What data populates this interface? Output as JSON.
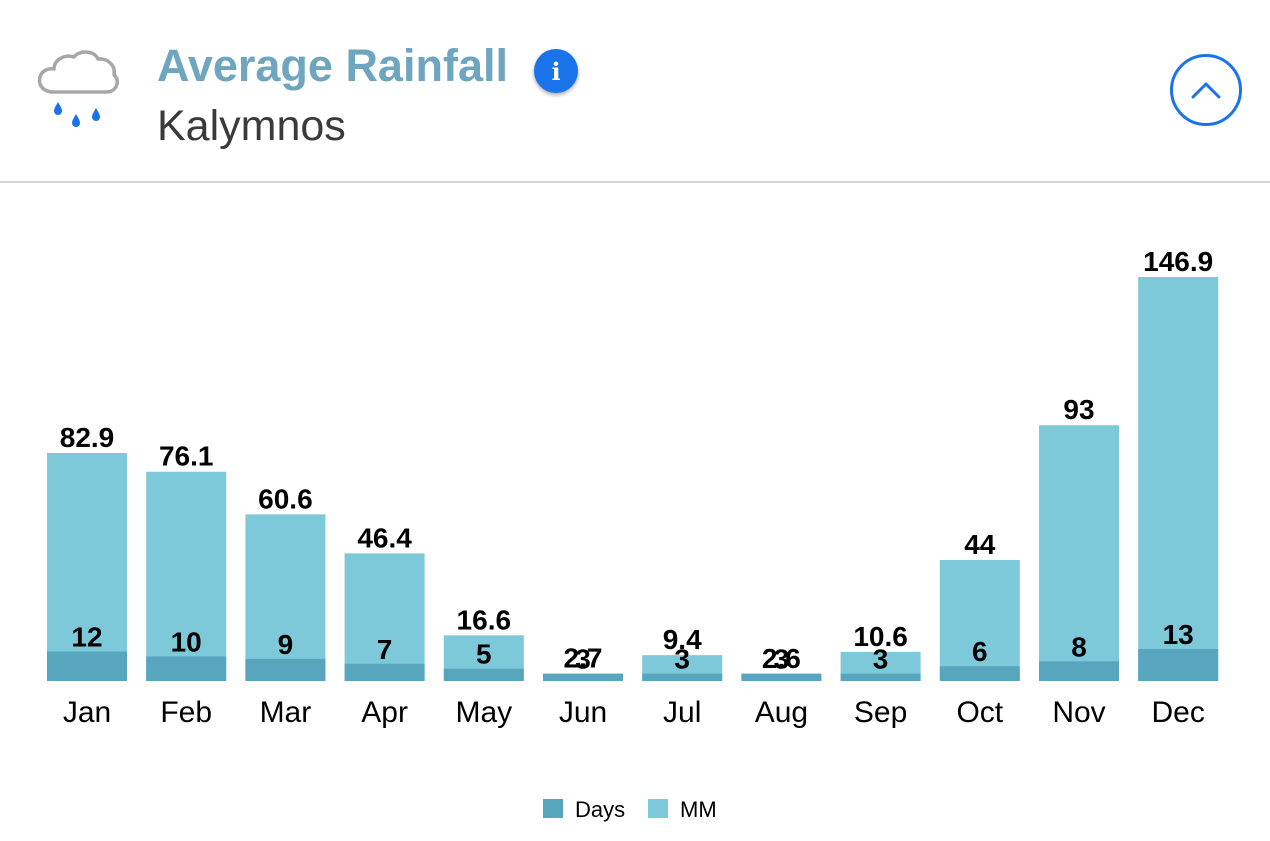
{
  "header": {
    "title": "Average Rainfall",
    "subtitle": "Kalymnos",
    "info_label": "i"
  },
  "colors": {
    "mm": "#7ec9d9",
    "days": "#57a6bd",
    "title": "#6fa6bf",
    "accent": "#1a73e8",
    "raindrop": "#1a73e8"
  },
  "icons": {
    "weather": "rain-cloud-icon",
    "info": "info-icon",
    "collapse": "chevron-up-icon"
  },
  "chart_data": {
    "type": "bar",
    "title": "Average Rainfall",
    "subtitle": "Kalymnos",
    "categories": [
      "Jan",
      "Feb",
      "Mar",
      "Apr",
      "May",
      "Jun",
      "Jul",
      "Aug",
      "Sep",
      "Oct",
      "Nov",
      "Dec"
    ],
    "series": [
      {
        "name": "MM",
        "values": [
          82.9,
          76.1,
          60.6,
          46.4,
          16.6,
          2.7,
          9.4,
          2.6,
          10.6,
          44,
          93,
          146.9
        ]
      },
      {
        "name": "Days",
        "values": [
          12,
          10,
          9,
          7,
          5,
          3,
          3,
          3,
          3,
          6,
          8,
          13
        ]
      }
    ],
    "xlabel": "",
    "ylabel": "",
    "ylim": [
      0,
      146.9
    ],
    "grid": false,
    "legend": [
      "Days",
      "MM"
    ],
    "legend_position": "bottom-center"
  }
}
